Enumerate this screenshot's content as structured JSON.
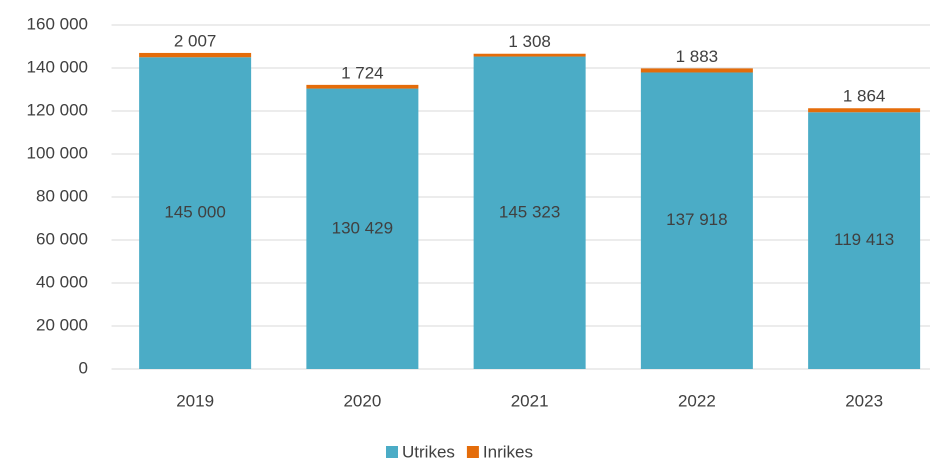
{
  "chart_data": {
    "type": "stacked_bar",
    "categories": [
      "2019",
      "2020",
      "2021",
      "2022",
      "2023"
    ],
    "series": [
      {
        "name": "Utrikes",
        "color": "#4bacc6",
        "values": [
          145000,
          130429,
          145323,
          137918,
          119413
        ],
        "value_labels": [
          "145 000",
          "130 429",
          "145 323",
          "137 918",
          "119 413"
        ]
      },
      {
        "name": "Inrikes",
        "color": "#e46c0a",
        "values": [
          2007,
          1724,
          1308,
          1883,
          1864
        ],
        "value_labels": [
          "2 007",
          "1 724",
          "1 308",
          "1 883",
          "1 864"
        ]
      }
    ],
    "ylim": [
      0,
      160000
    ],
    "yticks": [
      0,
      {
        "value": 20000,
        "label": "20 000"
      },
      {
        "value": 40000,
        "label": "40 000"
      },
      {
        "value": 60000,
        "label": "60 000"
      },
      {
        "value": 80000,
        "label": "80 000"
      },
      {
        "value": 100000,
        "label": "100 000"
      },
      {
        "value": 120000,
        "label": "120 000"
      },
      {
        "value": 140000,
        "label": "140 000"
      },
      {
        "value": 160000,
        "label": "160 000"
      }
    ],
    "grid": true,
    "legend": "bottom"
  }
}
